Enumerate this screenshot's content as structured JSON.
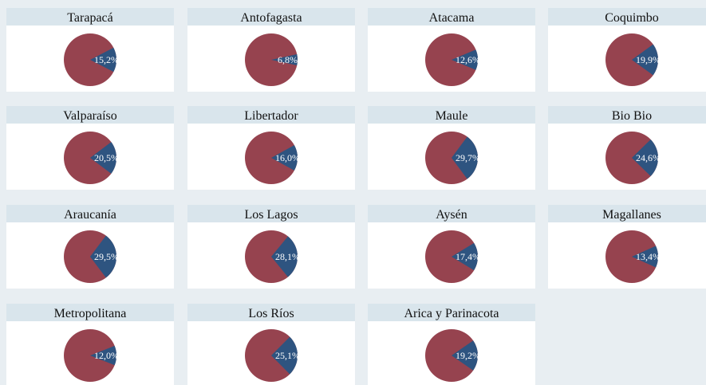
{
  "chart_data": {
    "type": "pie",
    "categories": [
      "Tarapacá",
      "Antofagasta",
      "Atacama",
      "Coquimbo",
      "Valparaíso",
      "Libertador",
      "Maule",
      "Bio Bio",
      "Araucanía",
      "Los Lagos",
      "Aysén",
      "Magallanes",
      "Metropolitana",
      "Los Ríos",
      "Arica y Parinacota"
    ],
    "values": [
      15.2,
      6.8,
      12.6,
      19.9,
      20.5,
      16.0,
      29.7,
      24.6,
      29.5,
      28.1,
      17.4,
      13.4,
      12.0,
      25.1,
      19.2
    ],
    "value_labels": [
      "15,2%",
      "6,8%",
      "12,6%",
      "19,9%",
      "20,5%",
      "16,0%",
      "29,7%",
      "24,6%",
      "29,5%",
      "28,1%",
      "17,4%",
      "13,4%",
      "12,0%",
      "25,1%",
      "19,2%"
    ],
    "color": "#2e5480",
    "rest_color": "#96434f"
  }
}
